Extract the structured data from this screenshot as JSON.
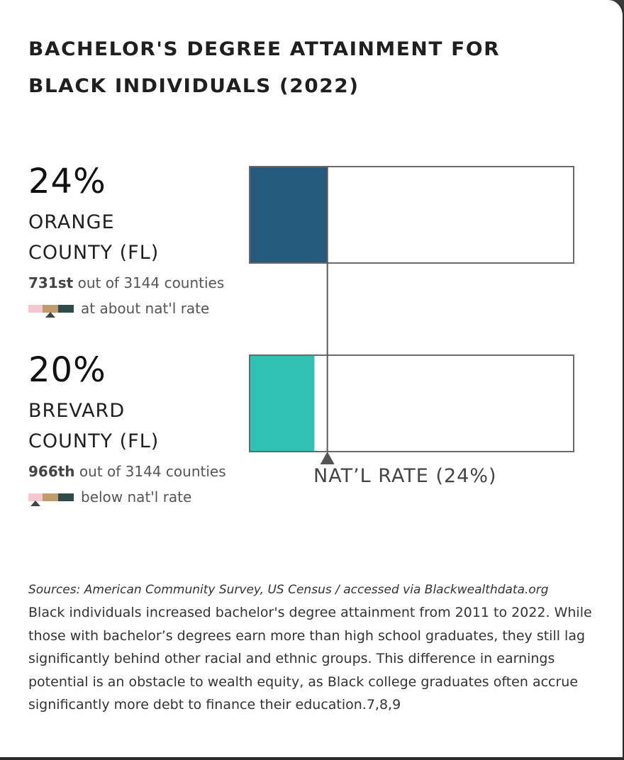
{
  "title_line1": "BACHELOR'S DEGREE ATTAINMENT FOR",
  "title_line2": "BLACK INDIVIDUALS (2022)",
  "counties": [
    {
      "pct_label": "24%",
      "name_line1": "ORANGE",
      "name_line2": "COUNTY (FL)",
      "rank": "731st",
      "rank_suffix": " out of 3144 counties",
      "status": "at about nat'l rate",
      "color": "#245a7c"
    },
    {
      "pct_label": "20%",
      "name_line1": "BREVARD",
      "name_line2": "COUNTY (FL)",
      "rank": "966th",
      "rank_suffix": " out of 3144 counties",
      "status": "below nat'l rate",
      "color": "#2ec1b4"
    }
  ],
  "nat_label": "NAT’L RATE (24%)",
  "legend_colors": [
    "#f7c6cc",
    "#c19a6b",
    "#2f4a48"
  ],
  "chart_data": {
    "type": "bar",
    "orientation": "horizontal",
    "categories": [
      "ORANGE COUNTY (FL)",
      "BREVARD COUNTY (FL)"
    ],
    "values": [
      24,
      20
    ],
    "reference_line": 24,
    "xlim": [
      0,
      100
    ]
  },
  "sources": "Sources: American Community Survey, US Census / accessed via Blackwealthdata.org",
  "body": "Black individuals increased bachelor's degree attainment from 2011 to 2022. While those with bachelor’s degrees earn more than high school graduates, they still lag significantly behind other racial and ethnic groups. This difference in earnings potential is an obstacle to wealth equity, as Black college graduates often accrue significantly more debt to finance their education.7,8,9"
}
